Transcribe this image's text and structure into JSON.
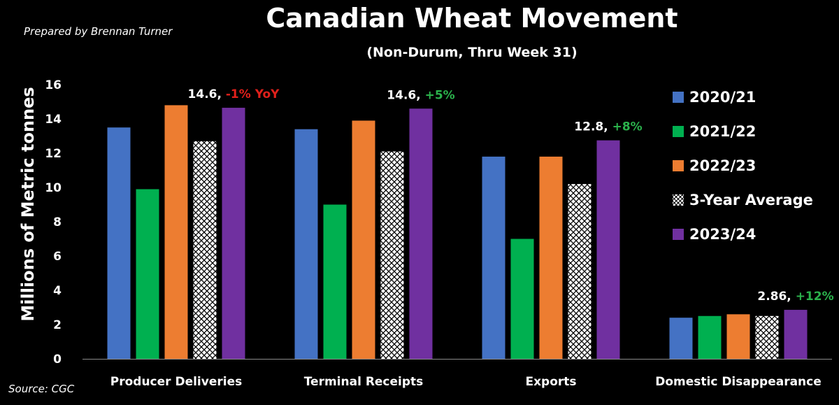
{
  "credit": "Prepared by Brennan Turner",
  "source": "Source: CGC",
  "chart_data": {
    "type": "bar",
    "title": "Canadian Wheat Movement",
    "subtitle": "(Non-Durum, Thru Week 31)",
    "xlabel": "",
    "ylabel": "Millions of Metric tonnes",
    "ylim": [
      0,
      16
    ],
    "yticks": [
      "0",
      "2",
      "4",
      "6",
      "8",
      "10",
      "12",
      "14",
      "16"
    ],
    "grid": false,
    "legend_position": "right",
    "categories": [
      "Producer Deliveries",
      "Terminal Receipts",
      "Exports",
      "Domestic Disappearance"
    ],
    "series": [
      {
        "name": "2020/21",
        "color": "#4472C4",
        "pattern": "solid",
        "values": [
          13.5,
          13.4,
          11.8,
          2.4
        ]
      },
      {
        "name": "2021/22",
        "color": "#00B050",
        "pattern": "solid",
        "values": [
          9.9,
          9.0,
          7.0,
          2.5
        ]
      },
      {
        "name": "2022/23",
        "color": "#ED7D31",
        "pattern": "solid",
        "values": [
          14.8,
          13.9,
          11.8,
          2.6
        ]
      },
      {
        "name": "3-Year Average",
        "color": "#FFFFFF",
        "pattern": "hatched",
        "values": [
          12.7,
          12.1,
          10.2,
          2.5
        ]
      },
      {
        "name": "2023/24",
        "color": "#7030A0",
        "pattern": "solid",
        "values": [
          14.65,
          14.6,
          12.75,
          2.86
        ]
      }
    ],
    "annotations": [
      {
        "category_index": 0,
        "value": "14.6",
        "separator": ", ",
        "change": "-1% YoY",
        "change_color": "#E0201B"
      },
      {
        "category_index": 1,
        "value": "14.6",
        "separator": ", ",
        "change": "+5%",
        "change_color": "#2BB24C"
      },
      {
        "category_index": 2,
        "value": "12.8",
        "separator": ", ",
        "change": "+8%",
        "change_color": "#2BB24C"
      },
      {
        "category_index": 3,
        "value": "2.86",
        "separator": ", ",
        "change": "+12%",
        "change_color": "#2BB24C"
      }
    ]
  }
}
